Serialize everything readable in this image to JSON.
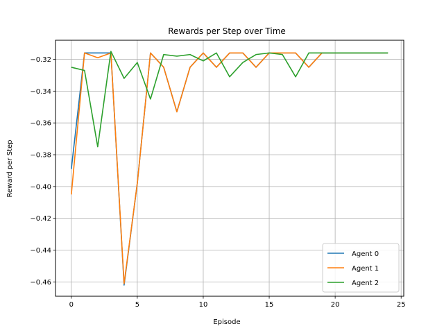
{
  "chart_data": {
    "type": "line",
    "title": "Rewards per Step over Time",
    "xlabel": "Episode",
    "ylabel": "Reward per Step",
    "xlim": [
      -1.2,
      25.2
    ],
    "ylim": [
      -0.469,
      -0.308
    ],
    "xticks": [
      0,
      5,
      10,
      15,
      20,
      25
    ],
    "yticks": [
      -0.46,
      -0.44,
      -0.42,
      -0.4,
      -0.38,
      -0.36,
      -0.34,
      -0.32
    ],
    "ytick_labels": [
      "−0.46",
      "−0.44",
      "−0.42",
      "−0.40",
      "−0.38",
      "−0.36",
      "−0.34",
      "−0.32"
    ],
    "grid": true,
    "legend_position": "lower-right",
    "x": [
      0,
      1,
      2,
      3,
      4,
      5,
      6,
      7,
      8,
      9,
      10,
      11,
      12,
      13,
      14,
      15,
      16,
      17,
      18,
      19,
      20,
      21,
      22,
      23,
      24
    ],
    "series": [
      {
        "name": "Agent 0",
        "color": "#1f77b4",
        "values": [
          -0.389,
          -0.316,
          -0.316,
          -0.316,
          -0.462,
          -0.398,
          -0.316,
          -0.325,
          -0.353,
          -0.325,
          -0.316,
          -0.325,
          -0.316,
          -0.316,
          -0.325,
          -0.316,
          -0.316,
          -0.316,
          -0.325,
          -0.316,
          -0.316,
          -0.316,
          -0.316,
          -0.316,
          -0.316
        ]
      },
      {
        "name": "Agent 1",
        "color": "#ff7f0e",
        "values": [
          -0.405,
          -0.316,
          -0.319,
          -0.316,
          -0.461,
          -0.398,
          -0.316,
          -0.325,
          -0.353,
          -0.325,
          -0.316,
          -0.325,
          -0.316,
          -0.316,
          -0.325,
          -0.316,
          -0.316,
          -0.316,
          -0.325,
          -0.316,
          -0.316,
          -0.316,
          -0.316,
          -0.316,
          -0.316
        ]
      },
      {
        "name": "Agent 2",
        "color": "#2ca02c",
        "values": [
          -0.325,
          -0.327,
          -0.375,
          -0.315,
          -0.332,
          -0.322,
          -0.345,
          -0.317,
          -0.318,
          -0.317,
          -0.321,
          -0.316,
          -0.331,
          -0.322,
          -0.317,
          -0.316,
          -0.317,
          -0.331,
          -0.316,
          -0.316,
          -0.316,
          -0.316,
          -0.316,
          -0.316,
          -0.316
        ]
      }
    ]
  }
}
